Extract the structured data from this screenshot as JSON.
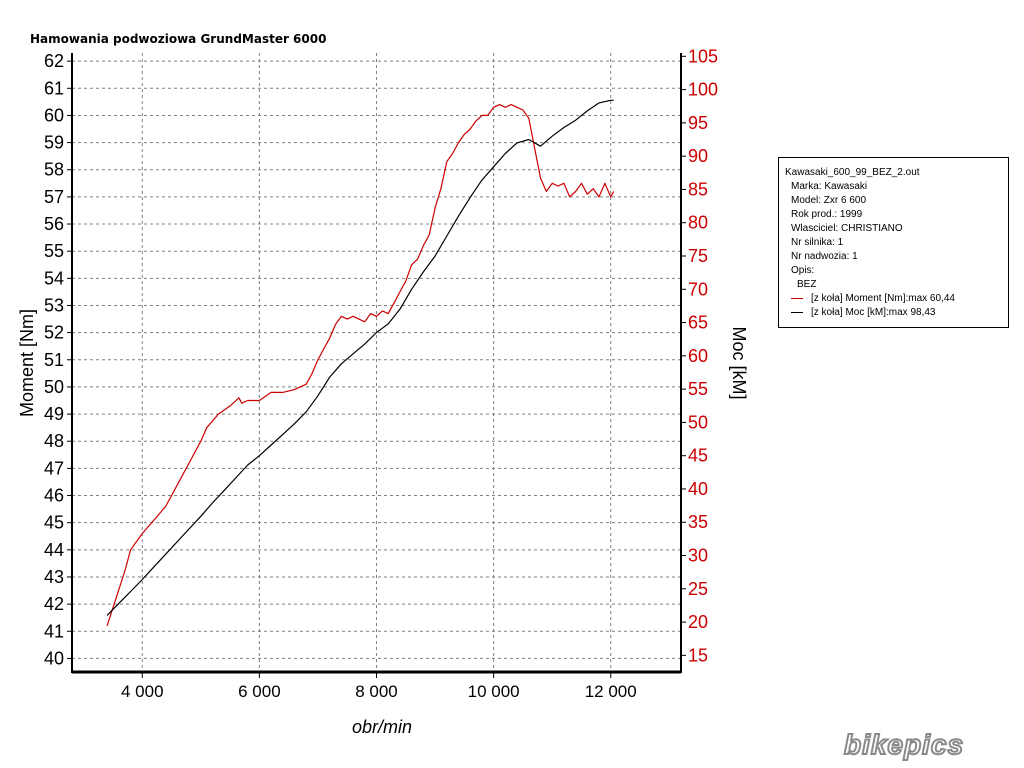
{
  "title": "Hamowania podwoziowa GrundMaster 6000",
  "colors": {
    "moment": "#cc0000",
    "moc": "#000000",
    "grid": "#808080"
  },
  "chart_data": {
    "type": "line",
    "xlabel": "obr/min",
    "ylabel_left": "Moment [Nm]",
    "ylabel_right": "Moc [kM]",
    "xlim": [
      2800,
      13200
    ],
    "ylim_left": [
      39.5,
      62.3
    ],
    "ylim_right": [
      12.5,
      105.5
    ],
    "x_ticks": [
      4000,
      6000,
      8000,
      10000,
      12000
    ],
    "x_tick_labels": [
      "4 000",
      "6 000",
      "8 000",
      "10 000",
      "12 000"
    ],
    "y_left_ticks": [
      "40",
      "41",
      "42",
      "43",
      "44",
      "45",
      "46",
      "47",
      "48",
      "49",
      "50",
      "51",
      "52",
      "53",
      "54",
      "55",
      "56",
      "57",
      "58",
      "59",
      "60",
      "61",
      "62"
    ],
    "y_right_ticks": [
      "15",
      "20",
      "25",
      "30",
      "35",
      "40",
      "45",
      "50",
      "55",
      "60",
      "65",
      "70",
      "75",
      "80",
      "85",
      "90",
      "95",
      "100",
      "105"
    ],
    "grid": true,
    "series": [
      {
        "name": "[z koła] Moment [Nm]:max 60,44",
        "axis": "left",
        "x": [
          3400,
          3550,
          3700,
          3800,
          4000,
          4200,
          4400,
          4600,
          4800,
          5000,
          5100,
          5300,
          5500,
          5650,
          5700,
          5800,
          6000,
          6200,
          6400,
          6600,
          6800,
          6900,
          7000,
          7100,
          7200,
          7300,
          7400,
          7500,
          7600,
          7700,
          7800,
          7900,
          8000,
          8100,
          8200,
          8300,
          8400,
          8500,
          8600,
          8700,
          8800,
          8900,
          9000,
          9100,
          9200,
          9300,
          9400,
          9500,
          9600,
          9700,
          9800,
          9900,
          10000,
          10100,
          10200,
          10300,
          10400,
          10500,
          10600,
          10700,
          10800,
          10900,
          11000,
          11100,
          11200,
          11300,
          11400,
          11500,
          11600,
          11700,
          11800,
          11900,
          12000,
          12050
        ],
        "y": [
          41.2,
          42.2,
          43.2,
          44.0,
          44.6,
          45.1,
          45.6,
          46.4,
          47.2,
          48.0,
          48.5,
          49.0,
          49.3,
          49.6,
          49.4,
          49.5,
          49.5,
          49.8,
          49.8,
          49.9,
          50.1,
          50.5,
          51.0,
          51.4,
          51.8,
          52.3,
          52.6,
          52.5,
          52.6,
          52.5,
          52.4,
          52.7,
          52.6,
          52.8,
          52.7,
          53.1,
          53.5,
          53.9,
          54.5,
          54.7,
          55.2,
          55.6,
          56.6,
          57.3,
          58.3,
          58.6,
          59.0,
          59.3,
          59.5,
          59.8,
          60.0,
          60.0,
          60.3,
          60.4,
          60.3,
          60.4,
          60.3,
          60.2,
          59.9,
          58.8,
          57.7,
          57.2,
          57.5,
          57.4,
          57.5,
          57.0,
          57.2,
          57.5,
          57.1,
          57.3,
          57.0,
          57.5,
          57.0,
          57.2
        ]
      },
      {
        "name": "[z koła] Moc [kM]:max 98,43",
        "axis": "right",
        "x": [
          3400,
          3600,
          3800,
          4000,
          4200,
          4400,
          4600,
          4800,
          5000,
          5200,
          5400,
          5600,
          5800,
          6000,
          6200,
          6400,
          6600,
          6800,
          7000,
          7200,
          7400,
          7600,
          7800,
          8000,
          8200,
          8400,
          8600,
          8800,
          9000,
          9200,
          9400,
          9600,
          9800,
          10000,
          10200,
          10400,
          10600,
          10800,
          11000,
          11200,
          11400,
          11600,
          11800,
          12000,
          12050
        ],
        "y": [
          21.0,
          22.8,
          24.6,
          26.4,
          28.3,
          30.2,
          32.1,
          34.0,
          35.9,
          37.9,
          39.8,
          41.7,
          43.6,
          45.0,
          46.6,
          48.2,
          49.8,
          51.6,
          54.0,
          56.8,
          58.8,
          60.3,
          61.8,
          63.5,
          64.8,
          67.0,
          70.0,
          72.6,
          75.0,
          78.0,
          81.0,
          83.8,
          86.4,
          88.4,
          90.4,
          92.0,
          92.5,
          91.5,
          93.0,
          94.3,
          95.4,
          96.8,
          98.0,
          98.4,
          98.4
        ]
      }
    ]
  },
  "legend": {
    "file": "Kawasaki_600_99_BEZ_2.out",
    "marka": "Marka: Kawasaki",
    "model": "Model: Zxr 6 600",
    "rok": "Rok prod.: 1999",
    "wlasciciel": "Wlasciciel: CHRISTIANO",
    "silnik": "Nr silnika: 1",
    "nadwozie": "Nr nadwozia: 1",
    "opis_label": "Opis:",
    "opis_value": "BEZ",
    "series1": "[z koła] Moment [Nm]:max 60,44",
    "series2": "[z koła] Moc [kM]:max 98,43"
  },
  "watermark": "bikepics"
}
